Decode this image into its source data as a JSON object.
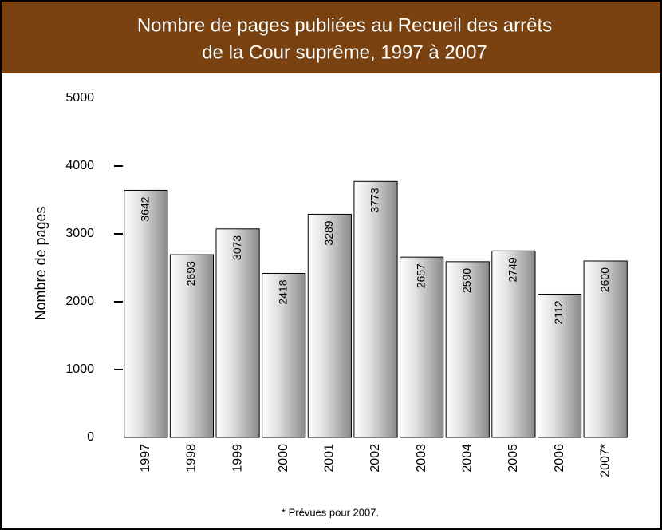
{
  "chart_data": {
    "type": "bar",
    "title": [
      "Nombre de pages publiées au Recueil des arrêts",
      "de la Cour suprême, 1997 à 2007"
    ],
    "y_label": "Nombre de pages",
    "categories": [
      "1997",
      "1998",
      "1999",
      "2000",
      "2001",
      "2002",
      "2003",
      "2004",
      "2005",
      "2006",
      "2007*"
    ],
    "values": [
      3642,
      2693,
      3073,
      2418,
      3289,
      3773,
      2657,
      2590,
      2749,
      2112,
      2600
    ],
    "color": "#a8a8a8",
    "ylim": [
      0,
      5000
    ],
    "yticks": [
      0,
      1000,
      2000,
      3000,
      4000,
      5000
    ],
    "footnote": "* Prévues pour 2007."
  }
}
